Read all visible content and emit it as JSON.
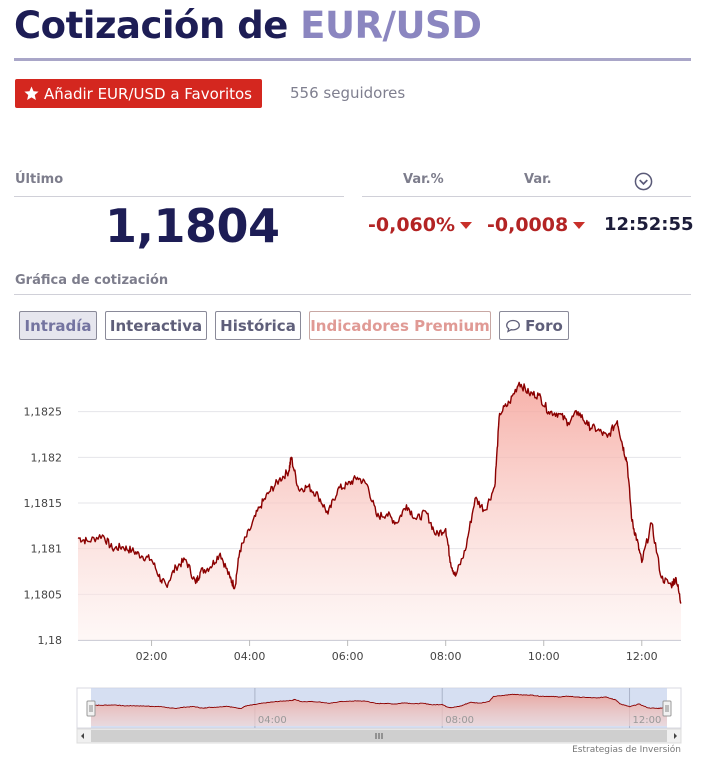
{
  "header": {
    "title_prefix": "Cotización de ",
    "title_pair": "EUR/USD"
  },
  "favorites": {
    "button_label": "Añadir EUR/USD a Favoritos",
    "followers": "556 seguidores"
  },
  "quote": {
    "last_label": "Último",
    "last_value": "1,1804",
    "pct_label": "Var.%",
    "pct_value": "-0,060%",
    "var_label": "Var.",
    "var_value": "-0,0008",
    "time_value": "12:52:55"
  },
  "section": {
    "chart_heading": "Gráfica de cotización"
  },
  "tabs": [
    {
      "label": "Intradía",
      "active": true
    },
    {
      "label": "Interactiva",
      "active": false
    },
    {
      "label": "Histórica",
      "active": false
    },
    {
      "label": "Indicadores Premium",
      "active": false
    },
    {
      "label": "Foro",
      "active": false
    }
  ],
  "colors": {
    "line": "#8b0000",
    "fill_top": "#f5a39a",
    "fill_bottom": "#fdf0ee",
    "brand_red": "#d4271f",
    "navy": "#1d1d55"
  },
  "chart_data": {
    "type": "area",
    "title": "",
    "xlabel": "",
    "ylabel": "",
    "x_ticks": [
      "02:00",
      "04:00",
      "06:00",
      "08:00",
      "10:00",
      "12:00"
    ],
    "y_ticks": [
      "1,18",
      "1,1805",
      "1,181",
      "1,1815",
      "1,182",
      "1,1825"
    ],
    "ylim": [
      1.18,
      1.183
    ],
    "xlim_hours": [
      0.5,
      12.8
    ],
    "x_hours": [
      0.5,
      0.7,
      1.0,
      1.2,
      1.4,
      1.6,
      1.8,
      2.0,
      2.2,
      2.3,
      2.5,
      2.7,
      2.9,
      3.0,
      3.2,
      3.4,
      3.6,
      3.7,
      3.8,
      4.0,
      4.2,
      4.4,
      4.6,
      4.8,
      4.85,
      5.0,
      5.2,
      5.4,
      5.6,
      5.8,
      6.0,
      6.2,
      6.4,
      6.6,
      6.8,
      7.0,
      7.2,
      7.4,
      7.6,
      7.8,
      8.0,
      8.1,
      8.2,
      8.4,
      8.6,
      8.8,
      9.0,
      9.1,
      9.3,
      9.5,
      9.7,
      9.9,
      10.1,
      10.3,
      10.5,
      10.7,
      10.9,
      11.1,
      11.3,
      11.5,
      11.6,
      11.7,
      11.8,
      11.9,
      12.0,
      12.2,
      12.4,
      12.6,
      12.7,
      12.8
    ],
    "y_values": [
      1.18112,
      1.18108,
      1.18115,
      1.181,
      1.18102,
      1.18098,
      1.18092,
      1.18088,
      1.18065,
      1.1806,
      1.1808,
      1.18088,
      1.18062,
      1.18075,
      1.1808,
      1.18095,
      1.18068,
      1.18058,
      1.18098,
      1.1812,
      1.18145,
      1.18162,
      1.18175,
      1.18185,
      1.182,
      1.18165,
      1.18168,
      1.18158,
      1.18138,
      1.18165,
      1.1817,
      1.18178,
      1.1817,
      1.18135,
      1.18138,
      1.18128,
      1.18148,
      1.18132,
      1.1814,
      1.18115,
      1.18122,
      1.18085,
      1.1807,
      1.18098,
      1.18155,
      1.18142,
      1.18168,
      1.18248,
      1.1826,
      1.18282,
      1.1827,
      1.18268,
      1.1825,
      1.18248,
      1.18238,
      1.1825,
      1.18235,
      1.1823,
      1.18222,
      1.1824,
      1.18215,
      1.18195,
      1.1813,
      1.1811,
      1.18085,
      1.18128,
      1.18068,
      1.1806,
      1.18068,
      1.1804
    ]
  },
  "credit": "Estrategias de Inversión"
}
